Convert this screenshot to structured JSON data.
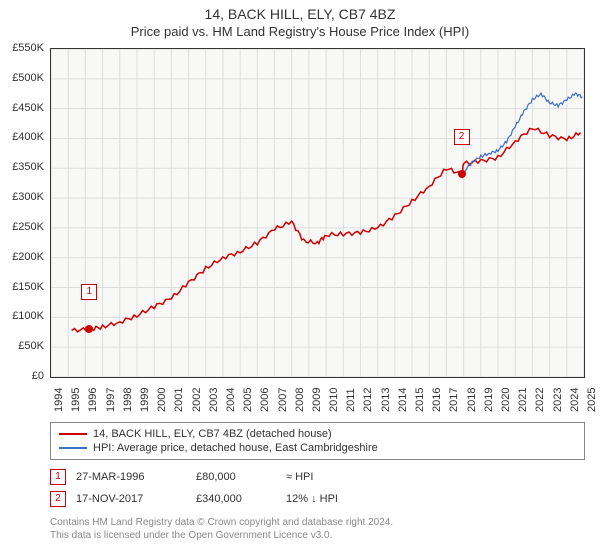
{
  "title": "14, BACK HILL, ELY, CB7 4BZ",
  "subtitle": "Price paid vs. HM Land Registry's House Price Index (HPI)",
  "chart": {
    "type": "line",
    "background_color": "#f8f8f6",
    "grid_color": "#dddddd",
    "border_color": "#333333",
    "x": {
      "min": 1994,
      "max": 2025,
      "ticks": [
        1994,
        1995,
        1996,
        1997,
        1998,
        1999,
        2000,
        2001,
        2002,
        2003,
        2004,
        2005,
        2006,
        2007,
        2008,
        2009,
        2010,
        2011,
        2012,
        2013,
        2014,
        2015,
        2016,
        2017,
        2018,
        2019,
        2020,
        2021,
        2022,
        2023,
        2024,
        2025
      ]
    },
    "y": {
      "min": 0,
      "max": 550000,
      "ticks": [
        0,
        50000,
        100000,
        150000,
        200000,
        250000,
        300000,
        350000,
        400000,
        450000,
        500000,
        550000
      ],
      "tick_labels": [
        "£0",
        "£50K",
        "£100K",
        "£150K",
        "£200K",
        "£250K",
        "£300K",
        "£350K",
        "£400K",
        "£450K",
        "£500K",
        "£550K"
      ]
    },
    "series": [
      {
        "name": "property",
        "label": "14, BACK HILL, ELY, CB7 4BZ (detached house)",
        "color": "#cc0000",
        "width": 1.5,
        "points": [
          [
            1995.2,
            78000
          ],
          [
            1996.23,
            80000
          ],
          [
            1997,
            84000
          ],
          [
            1998,
            92000
          ],
          [
            1999,
            103000
          ],
          [
            2000,
            118000
          ],
          [
            2001,
            132000
          ],
          [
            2002,
            158000
          ],
          [
            2003,
            182000
          ],
          [
            2004,
            200000
          ],
          [
            2005,
            210000
          ],
          [
            2006,
            225000
          ],
          [
            2007,
            248000
          ],
          [
            2008,
            260000
          ],
          [
            2008.7,
            228000
          ],
          [
            2009.5,
            225000
          ],
          [
            2010,
            238000
          ],
          [
            2011,
            240000
          ],
          [
            2012,
            242000
          ],
          [
            2013,
            250000
          ],
          [
            2014,
            270000
          ],
          [
            2015,
            295000
          ],
          [
            2016,
            320000
          ],
          [
            2017,
            350000
          ],
          [
            2017.88,
            340000
          ],
          [
            2018,
            358000
          ],
          [
            2019,
            362000
          ],
          [
            2020,
            368000
          ],
          [
            2021,
            395000
          ],
          [
            2022,
            418000
          ],
          [
            2023,
            405000
          ],
          [
            2024,
            398000
          ],
          [
            2024.8,
            410000
          ]
        ]
      },
      {
        "name": "hpi",
        "label": "HPI: Average price, detached house, East Cambridgeshire",
        "color": "#3d6fc6",
        "width": 1.2,
        "points": [
          [
            2017.88,
            340000
          ],
          [
            2018.5,
            360000
          ],
          [
            2019,
            370000
          ],
          [
            2019.5,
            375000
          ],
          [
            2020,
            380000
          ],
          [
            2020.5,
            395000
          ],
          [
            2021,
            420000
          ],
          [
            2021.5,
            445000
          ],
          [
            2022,
            465000
          ],
          [
            2022.5,
            475000
          ],
          [
            2023,
            460000
          ],
          [
            2023.5,
            455000
          ],
          [
            2024,
            465000
          ],
          [
            2024.5,
            475000
          ],
          [
            2024.9,
            470000
          ]
        ]
      }
    ],
    "markers": [
      {
        "id": "1",
        "x": 1996.23,
        "y": 80000,
        "color": "#cc0000",
        "box_y_offset": -45
      },
      {
        "id": "2",
        "x": 2017.88,
        "y": 340000,
        "color": "#cc0000",
        "box_y_offset": -45
      }
    ]
  },
  "legend": {
    "items": [
      {
        "color": "#cc0000",
        "label": "14, BACK HILL, ELY, CB7 4BZ (detached house)"
      },
      {
        "color": "#3d6fc6",
        "label": "HPI: Average price, detached house, East Cambridgeshire"
      }
    ]
  },
  "transactions": [
    {
      "id": "1",
      "color": "#cc0000",
      "date": "27-MAR-1996",
      "price": "£80,000",
      "note": "≈ HPI"
    },
    {
      "id": "2",
      "color": "#cc0000",
      "date": "17-NOV-2017",
      "price": "£340,000",
      "note": "12% ↓ HPI"
    }
  ],
  "footnote_line1": "Contains HM Land Registry data © Crown copyright and database right 2024.",
  "footnote_line2": "This data is licensed under the Open Government Licence v3.0."
}
